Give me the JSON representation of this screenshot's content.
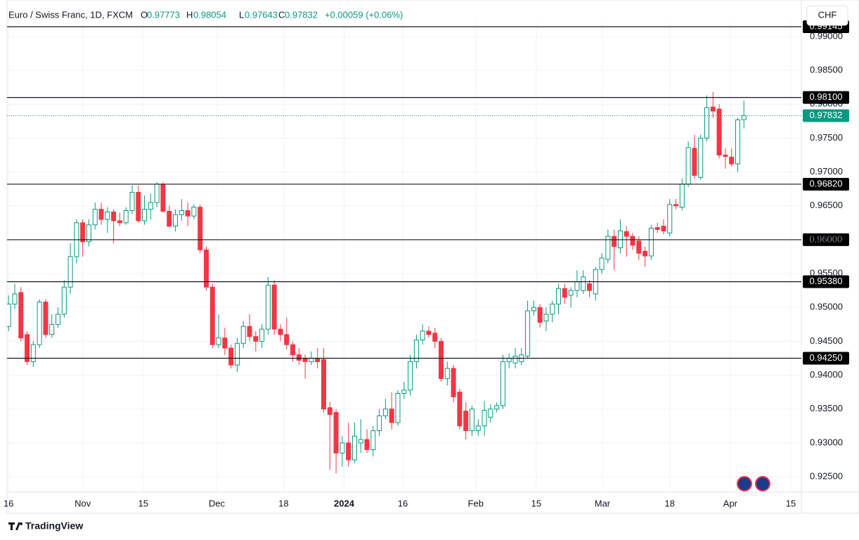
{
  "chart_data": {
    "type": "candlestick",
    "header": {
      "symbol": "Euro / Swiss Franc, 1D, FXCM",
      "o_label": "O",
      "o": "0.97773",
      "h_label": "H",
      "h": "0.98054",
      "l_label": "L",
      "l": "0.97643",
      "c_label": "C",
      "c": "0.97832",
      "change": "+0.00059 (+0.06%)"
    },
    "currency_button": "CHF",
    "brand": "TradingView",
    "up_color": "#089981",
    "down_color": "#f23645",
    "x": [
      0,
      1,
      2,
      3,
      4,
      5,
      6,
      7,
      8,
      9,
      10,
      11,
      12,
      13,
      14,
      15,
      16,
      17,
      18,
      19,
      20,
      21,
      22,
      23,
      24,
      25,
      26,
      27,
      28,
      29,
      30,
      31,
      32,
      33,
      34,
      35,
      36,
      37,
      38,
      39,
      40,
      41,
      42,
      43,
      44,
      45,
      46,
      47,
      48,
      49,
      50,
      51,
      52,
      53,
      54,
      55,
      56,
      57,
      58,
      59,
      60,
      61,
      62,
      63,
      64,
      65,
      66,
      67,
      68,
      69,
      70,
      71,
      72,
      73,
      74,
      75,
      76,
      77,
      78,
      79,
      80,
      81,
      82,
      83,
      84,
      85,
      86,
      87,
      88,
      89,
      90,
      91,
      92,
      93,
      94,
      95,
      96,
      97,
      98,
      99,
      100,
      101,
      102,
      103,
      104,
      105,
      106,
      107,
      108,
      109,
      110,
      111,
      112,
      113,
      114,
      115,
      116,
      117,
      118,
      119
    ],
    "open": [
      0.9472,
      0.9505,
      0.9522,
      0.946,
      0.942,
      0.9445,
      0.9508,
      0.946,
      0.9475,
      0.949,
      0.953,
      0.9575,
      0.9625,
      0.9597,
      0.9622,
      0.9645,
      0.963,
      0.9641,
      0.9628,
      0.9625,
      0.9643,
      0.967,
      0.9628,
      0.9645,
      0.9655,
      0.9682,
      0.9642,
      0.962,
      0.9637,
      0.9643,
      0.9635,
      0.9648,
      0.9585,
      0.953,
      0.9445,
      0.9455,
      0.944,
      0.9415,
      0.9447,
      0.9472,
      0.9457,
      0.945,
      0.9468,
      0.9533,
      0.9468,
      0.946,
      0.9445,
      0.943,
      0.9424,
      0.942,
      0.9425,
      0.9423,
      0.9352,
      0.9345,
      0.9285,
      0.93,
      0.9275,
      0.93,
      0.9305,
      0.929,
      0.9318,
      0.934,
      0.935,
      0.933,
      0.9373,
      0.9378,
      0.942,
      0.9452,
      0.9465,
      0.9462,
      0.945,
      0.9395,
      0.941,
      0.9375,
      0.9347,
      0.9318,
      0.9318,
      0.9325,
      0.9338,
      0.935,
      0.9355,
      0.942,
      0.9418,
      0.942,
      0.9428,
      0.9495,
      0.95,
      0.948,
      0.949,
      0.9505,
      0.9528,
      0.9518,
      0.9525,
      0.9525,
      0.9535,
      0.952,
      0.9556,
      0.9571,
      0.9605,
      0.9588,
      0.9612,
      0.9605,
      0.9598,
      0.9583,
      0.9576,
      0.9618,
      0.962,
      0.961,
      0.9652,
      0.9648,
      0.9682,
      0.9735,
      0.9692,
      0.975,
      0.9796,
      0.9793,
      0.9725,
      0.9722,
      0.9712,
      0.97773
    ],
    "high": [
      0.9518,
      0.9535,
      0.953,
      0.9465,
      0.945,
      0.9512,
      0.9512,
      0.949,
      0.95,
      0.954,
      0.9595,
      0.963,
      0.963,
      0.963,
      0.9655,
      0.9655,
      0.9648,
      0.9645,
      0.964,
      0.9648,
      0.968,
      0.968,
      0.9665,
      0.9668,
      0.9685,
      0.9685,
      0.965,
      0.9645,
      0.966,
      0.9655,
      0.9652,
      0.9652,
      0.959,
      0.9535,
      0.949,
      0.947,
      0.9445,
      0.9455,
      0.948,
      0.949,
      0.9465,
      0.9475,
      0.9545,
      0.954,
      0.9475,
      0.9485,
      0.945,
      0.944,
      0.943,
      0.9435,
      0.944,
      0.944,
      0.936,
      0.935,
      0.931,
      0.933,
      0.933,
      0.9335,
      0.932,
      0.9325,
      0.935,
      0.9365,
      0.9375,
      0.9378,
      0.939,
      0.943,
      0.946,
      0.9475,
      0.9472,
      0.947,
      0.9455,
      0.942,
      0.9415,
      0.938,
      0.936,
      0.9355,
      0.9335,
      0.9362,
      0.9357,
      0.936,
      0.943,
      0.9432,
      0.944,
      0.944,
      0.951,
      0.951,
      0.9505,
      0.95,
      0.951,
      0.9535,
      0.9535,
      0.953,
      0.9555,
      0.9555,
      0.954,
      0.956,
      0.958,
      0.9615,
      0.9615,
      0.963,
      0.962,
      0.961,
      0.9605,
      0.959,
      0.9622,
      0.9625,
      0.963,
      0.966,
      0.966,
      0.969,
      0.9745,
      0.9755,
      0.9755,
      0.9813,
      0.9818,
      0.98,
      0.9735,
      0.9735,
      0.978,
      0.98054
    ],
    "low": [
      0.9465,
      0.9498,
      0.945,
      0.9415,
      0.9412,
      0.944,
      0.9455,
      0.9455,
      0.947,
      0.9485,
      0.952,
      0.9565,
      0.9575,
      0.959,
      0.9615,
      0.9622,
      0.961,
      0.9595,
      0.962,
      0.9622,
      0.9638,
      0.9625,
      0.9622,
      0.963,
      0.9648,
      0.964,
      0.9618,
      0.9612,
      0.9628,
      0.962,
      0.963,
      0.958,
      0.9525,
      0.944,
      0.944,
      0.943,
      0.941,
      0.9405,
      0.944,
      0.945,
      0.9435,
      0.944,
      0.946,
      0.946,
      0.945,
      0.9438,
      0.942,
      0.9415,
      0.9395,
      0.9415,
      0.941,
      0.9345,
      0.926,
      0.9255,
      0.9265,
      0.9265,
      0.927,
      0.9285,
      0.9285,
      0.928,
      0.931,
      0.9335,
      0.932,
      0.9325,
      0.9365,
      0.937,
      0.941,
      0.9445,
      0.9455,
      0.944,
      0.939,
      0.9385,
      0.936,
      0.932,
      0.9305,
      0.931,
      0.931,
      0.931,
      0.933,
      0.9345,
      0.935,
      0.941,
      0.941,
      0.9415,
      0.9425,
      0.9488,
      0.947,
      0.9465,
      0.9478,
      0.949,
      0.9505,
      0.95,
      0.9515,
      0.952,
      0.9515,
      0.951,
      0.955,
      0.9565,
      0.9555,
      0.958,
      0.9575,
      0.9585,
      0.957,
      0.956,
      0.957,
      0.961,
      0.9608,
      0.9605,
      0.9645,
      0.9643,
      0.9678,
      0.969,
      0.9688,
      0.9745,
      0.978,
      0.972,
      0.9705,
      0.9708,
      0.97,
      0.97643
    ],
    "close": [
      0.9505,
      0.952,
      0.9455,
      0.942,
      0.9445,
      0.9508,
      0.946,
      0.9475,
      0.949,
      0.953,
      0.9575,
      0.9625,
      0.9597,
      0.9622,
      0.9645,
      0.963,
      0.9641,
      0.9628,
      0.9625,
      0.9643,
      0.967,
      0.9628,
      0.9645,
      0.9655,
      0.9682,
      0.9642,
      0.962,
      0.9637,
      0.9643,
      0.9635,
      0.9648,
      0.9585,
      0.953,
      0.9445,
      0.9455,
      0.944,
      0.9415,
      0.9447,
      0.9472,
      0.9457,
      0.945,
      0.9468,
      0.9533,
      0.9468,
      0.946,
      0.9445,
      0.943,
      0.9422,
      0.942,
      0.9425,
      0.942,
      0.935,
      0.9342,
      0.9285,
      0.93,
      0.9275,
      0.931,
      0.9305,
      0.929,
      0.9318,
      0.934,
      0.935,
      0.933,
      0.9373,
      0.9378,
      0.942,
      0.9452,
      0.9465,
      0.946,
      0.945,
      0.9395,
      0.941,
      0.9368,
      0.9325,
      0.9318,
      0.935,
      0.9325,
      0.9348,
      0.935,
      0.9355,
      0.942,
      0.9425,
      0.9428,
      0.943,
      0.9495,
      0.95,
      0.9478,
      0.949,
      0.9505,
      0.9528,
      0.9515,
      0.9525,
      0.9538,
      0.9545,
      0.9525,
      0.9556,
      0.9573,
      0.9605,
      0.959,
      0.9613,
      0.9605,
      0.9592,
      0.958,
      0.9576,
      0.9617,
      0.9615,
      0.9613,
      0.9652,
      0.965,
      0.9682,
      0.9736,
      0.9695,
      0.975,
      0.9795,
      0.979,
      0.9725,
      0.9723,
      0.9712,
      0.9777,
      0.97832
    ],
    "xlim": [
      -0.25,
      128.3
    ],
    "xticks": [
      {
        "value": 0,
        "label": "16"
      },
      {
        "value": 12,
        "label": "Nov"
      },
      {
        "value": 21.8,
        "label": "15"
      },
      {
        "value": 33.7,
        "label": "Dec"
      },
      {
        "value": 44.5,
        "label": "18"
      },
      {
        "value": 54.3,
        "label": "2024"
      },
      {
        "value": 63.8,
        "label": "16"
      },
      {
        "value": 75.6,
        "label": "Feb"
      },
      {
        "value": 85.4,
        "label": "15"
      },
      {
        "value": 96.1,
        "label": "Mar"
      },
      {
        "value": 107,
        "label": "18"
      },
      {
        "value": 116.8,
        "label": "Apr"
      },
      {
        "value": 126.6,
        "label": "15"
      }
    ],
    "ylim": [
      0.92272,
      0.99228
    ],
    "yticks": [
      {
        "value": 0.925,
        "label": "0.92500"
      },
      {
        "value": 0.93,
        "label": "0.93000"
      },
      {
        "value": 0.935,
        "label": "0.93500"
      },
      {
        "value": 0.94,
        "label": "0.94000"
      },
      {
        "value": 0.945,
        "label": "0.94500"
      },
      {
        "value": 0.95,
        "label": "0.95000"
      },
      {
        "value": 0.955,
        "label": "0.95500"
      },
      {
        "value": 0.96,
        "label": "0.96000"
      },
      {
        "value": 0.965,
        "label": "0.96500"
      },
      {
        "value": 0.97,
        "label": "0.97000"
      },
      {
        "value": 0.975,
        "label": "0.97500"
      },
      {
        "value": 0.98,
        "label": "0.98000"
      },
      {
        "value": 0.985,
        "label": "0.98500"
      },
      {
        "value": 0.99,
        "label": "0.99000"
      }
    ],
    "grid": true,
    "levels": [
      {
        "value": 0.99145,
        "label": "0.99145"
      },
      {
        "value": 0.981,
        "label": "0.98100"
      },
      {
        "value": 0.9682,
        "label": "0.96820"
      },
      {
        "value": 0.96,
        "label": "0.96000"
      },
      {
        "value": 0.9538,
        "label": "0.95380"
      },
      {
        "value": 0.9425,
        "label": "0.94250"
      }
    ],
    "last_price": {
      "value": 0.97832,
      "label": "0.97832"
    }
  }
}
